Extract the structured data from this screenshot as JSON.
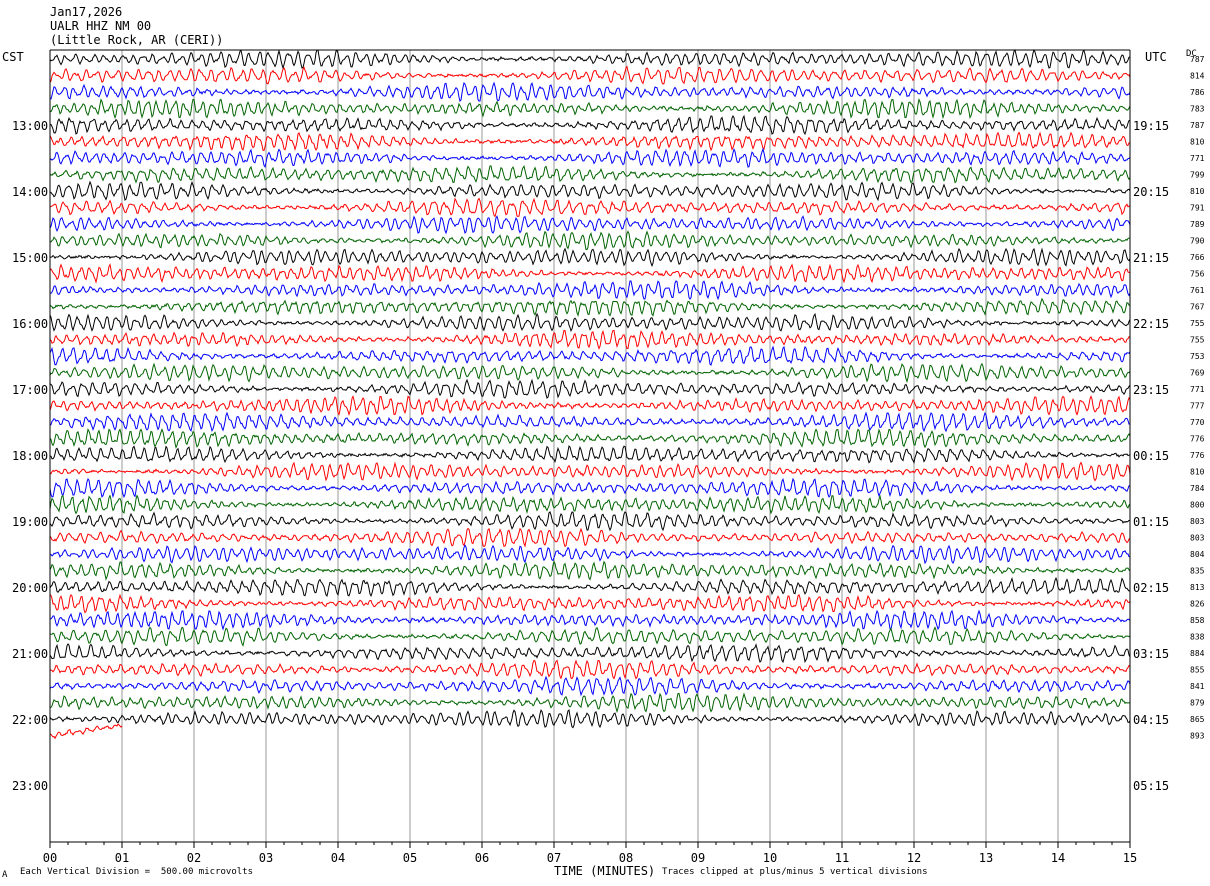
{
  "header": {
    "date": "Jan17,2026",
    "station": "UALR HHZ NM 00",
    "location": "(Little Rock, AR (CERI))"
  },
  "left_axis_label": "CST",
  "right_axis_label": "UTC",
  "dc_label": "DC",
  "footer": {
    "scale": "Each Vertical Division =  500.00 microvolts",
    "xlabel": "TIME (MINUTES)",
    "clip_note": "Traces clipped at plus/minus 5 vertical divisions",
    "corner_mark": "A"
  },
  "chart_data": {
    "type": "line",
    "title": "",
    "xlabel": "TIME (MINUTES)",
    "x_ticks": [
      "00",
      "01",
      "02",
      "03",
      "04",
      "05",
      "06",
      "07",
      "08",
      "09",
      "10",
      "11",
      "12",
      "13",
      "14",
      "15"
    ],
    "xlim": [
      0,
      15
    ],
    "left_hour_labels": [
      "13:00",
      "14:00",
      "15:00",
      "16:00",
      "17:00",
      "18:00",
      "19:00",
      "20:00",
      "21:00",
      "22:00",
      "23:00"
    ],
    "right_hour_labels": [
      "19:15",
      "20:15",
      "21:15",
      "22:15",
      "23:15",
      "00:15",
      "01:15",
      "02:15",
      "03:15",
      "04:15",
      "05:15"
    ],
    "trace_colors": [
      "#000000",
      "#ff0000",
      "#0000ff",
      "#006400"
    ],
    "trace_dc_offsets": [
      787,
      814,
      786,
      783,
      787,
      810,
      771,
      799,
      810,
      791,
      789,
      790,
      766,
      756,
      761,
      767,
      755,
      755,
      753,
      769,
      771,
      777,
      770,
      776,
      776,
      810,
      784,
      800,
      803,
      803,
      804,
      835,
      813,
      826,
      858,
      838,
      884,
      855,
      841,
      879,
      865,
      893
    ],
    "last_trace_minutes": 1.0,
    "clip_divisions": 5,
    "microvolts_per_division": 500.0
  }
}
